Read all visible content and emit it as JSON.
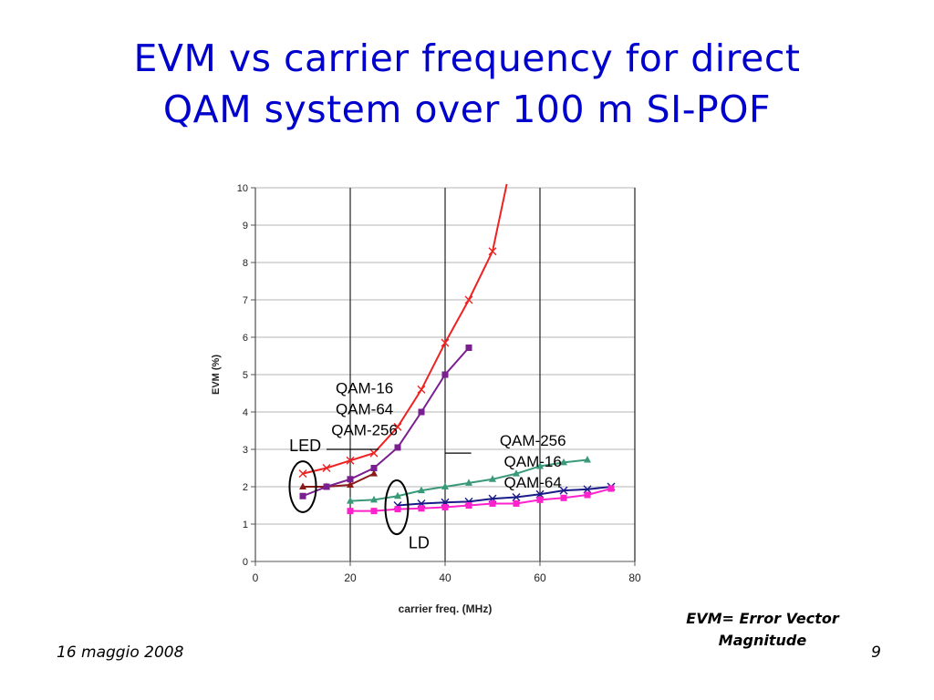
{
  "slide": {
    "title_lines": [
      "EVM vs carrier frequency for direct",
      "QAM system over 100 m SI-POF"
    ],
    "footer_date": "16 maggio 2008",
    "page_number": "9",
    "note_lines": [
      "EVM= Error Vector",
      "Magnitude"
    ]
  },
  "chart_data": {
    "type": "line",
    "title": "",
    "xlabel": "carrier freq. (MHz)",
    "ylabel": "EVM (%)",
    "xlim": [
      0,
      80
    ],
    "ylim": [
      0,
      10
    ],
    "x_ticks": [
      "0",
      "20",
      "40",
      "60",
      "80"
    ],
    "y_ticks": [
      "0",
      "1",
      "2",
      "3",
      "4",
      "5",
      "6",
      "7",
      "8",
      "9",
      "10"
    ],
    "grid": "vertical lines at major x ticks, horizontal lines at each y tick",
    "series": [
      {
        "color": "#ee2222",
        "marker": "x",
        "x": [
          10,
          15,
          20,
          25,
          30,
          35,
          40,
          45,
          50,
          53
        ],
        "y": [
          2.35,
          2.5,
          2.7,
          2.9,
          3.6,
          4.6,
          5.85,
          7.0,
          8.3,
          10.1
        ]
      },
      {
        "color": "#8b1a1a",
        "marker": "triangle",
        "x": [
          10,
          15,
          20,
          25
        ],
        "y": [
          2.0,
          2.0,
          2.05,
          2.35
        ]
      },
      {
        "color": "#7a1f8f",
        "marker": "square",
        "x": [
          10,
          15,
          20,
          25,
          30,
          35,
          40,
          45
        ],
        "y": [
          1.75,
          2.0,
          2.2,
          2.5,
          3.05,
          4.0,
          5.0,
          5.72
        ]
      },
      {
        "color": "#3a9a78",
        "marker": "triangle",
        "x": [
          20,
          25,
          30,
          35,
          40,
          45,
          50,
          55,
          60,
          65,
          70
        ],
        "y": [
          1.62,
          1.65,
          1.75,
          1.9,
          2.0,
          2.1,
          2.2,
          2.35,
          2.55,
          2.65,
          2.72
        ]
      },
      {
        "color": "#1a1a8a",
        "marker": "x",
        "x": [
          30,
          35,
          40,
          45,
          50,
          55,
          60,
          65,
          70,
          75
        ],
        "y": [
          1.5,
          1.55,
          1.58,
          1.6,
          1.68,
          1.72,
          1.8,
          1.9,
          1.93,
          2.0
        ]
      },
      {
        "color": "#ff22cc",
        "marker": "square",
        "x": [
          20,
          25,
          30,
          35,
          40,
          45,
          50,
          55,
          60,
          65,
          70,
          75
        ],
        "y": [
          1.35,
          1.35,
          1.4,
          1.42,
          1.45,
          1.5,
          1.55,
          1.55,
          1.65,
          1.7,
          1.78,
          1.95
        ]
      }
    ],
    "annotations": [
      {
        "text_lines": [
          "QAM-16",
          "QAM-64",
          "QAM-256"
        ],
        "x": 23,
        "y": 4.5
      },
      {
        "text_lines": [
          "QAM-256",
          "QAM-16",
          "QAM-64"
        ],
        "x": 58.5,
        "y": 3.1
      },
      {
        "text": "LED",
        "x": 10.5,
        "y": 2.95
      },
      {
        "text": "LD",
        "x": 34.5,
        "y": 0.35
      }
    ],
    "ellipses": [
      {
        "cx": 10,
        "cy": 2.0,
        "rx": 2.8,
        "ry": 0.68
      },
      {
        "cx": 29.8,
        "cy": 1.45,
        "rx": 2.4,
        "ry": 0.72
      }
    ],
    "leader_lines": [
      {
        "x1": 15,
        "y1": 3.0,
        "x2": 26,
        "y2": 3.0
      },
      {
        "x1": 40,
        "y1": 2.9,
        "x2": 45.5,
        "y2": 2.9
      }
    ]
  }
}
